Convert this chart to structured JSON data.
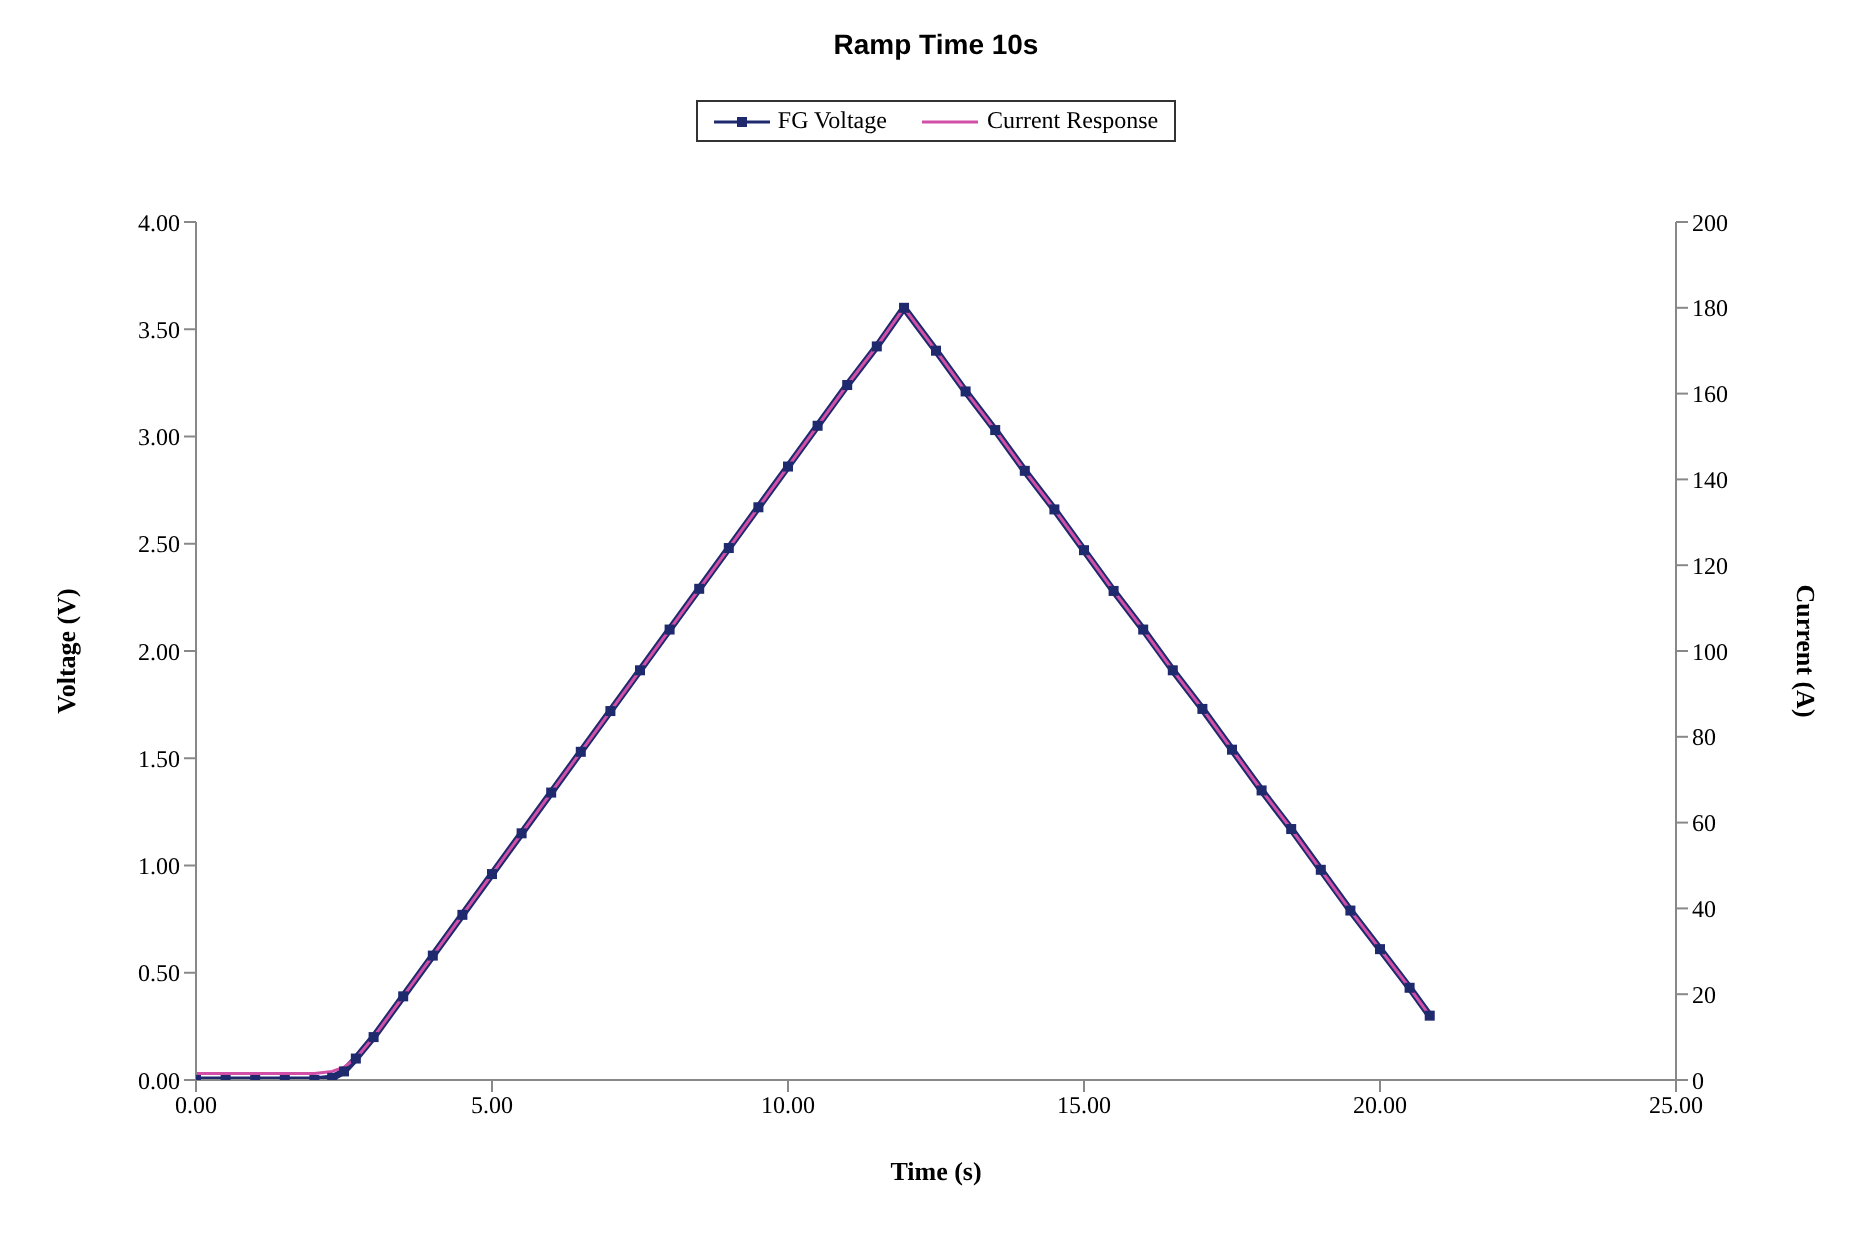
{
  "chart_data": {
    "type": "line",
    "title": "Ramp Time 10s",
    "xlabel": "Time (s)",
    "ylabel": "Voltage (V)",
    "y2label": "Current (A)",
    "x": [
      0,
      0.5,
      1,
      1.5,
      2,
      2.3,
      2.5,
      2.7,
      3,
      3.5,
      4,
      4.5,
      5,
      5.5,
      6,
      6.5,
      7,
      7.5,
      8,
      8.5,
      9,
      9.5,
      10,
      10.5,
      11,
      11.5,
      11.96,
      12.5,
      13,
      13.5,
      14,
      14.5,
      15,
      15.5,
      16,
      16.5,
      17,
      17.5,
      18,
      18.5,
      19,
      19.5,
      20,
      20.5,
      20.84
    ],
    "series": [
      {
        "name": "FG Voltage",
        "color": "#1f2a6e",
        "marker": "square",
        "values": [
          0,
          0,
          0,
          0,
          0,
          0.01,
          0.04,
          0.1,
          0.2,
          0.39,
          0.58,
          0.77,
          0.96,
          1.15,
          1.34,
          1.53,
          1.72,
          1.91,
          2.1,
          2.29,
          2.48,
          2.67,
          2.86,
          3.05,
          3.24,
          3.42,
          3.6,
          3.4,
          3.21,
          3.03,
          2.84,
          2.66,
          2.47,
          2.28,
          2.1,
          1.91,
          1.73,
          1.54,
          1.35,
          1.17,
          0.98,
          0.79,
          0.61,
          0.43,
          0.3
        ]
      },
      {
        "name": "Current Response",
        "color": "#d24fa8",
        "marker": "none",
        "axis": "y2",
        "values": [
          1.5,
          1.5,
          1.5,
          1.5,
          1.5,
          2,
          3,
          5,
          10,
          19.5,
          29,
          38.5,
          48,
          57.5,
          67,
          76.5,
          86,
          95.5,
          105,
          114.5,
          124,
          133.5,
          143,
          152.5,
          162,
          171,
          180,
          170,
          160.5,
          151.5,
          142,
          133,
          123.5,
          114,
          105,
          95.5,
          86.5,
          77,
          67.5,
          58.5,
          49,
          39.5,
          30.5,
          21.5,
          15
        ]
      }
    ],
    "xlim": [
      0,
      25
    ],
    "xticks": [
      {
        "value": 0,
        "label": "0.00"
      },
      {
        "value": 5,
        "label": "5.00"
      },
      {
        "value": 10,
        "label": "10.00"
      },
      {
        "value": 15,
        "label": "15.00"
      },
      {
        "value": 20,
        "label": "20.00"
      },
      {
        "value": 25,
        "label": "25.00"
      }
    ],
    "ylim": [
      0,
      4
    ],
    "yticks": [
      {
        "value": 0,
        "label": "0.00"
      },
      {
        "value": 0.5,
        "label": "0.50"
      },
      {
        "value": 1,
        "label": "1.00"
      },
      {
        "value": 1.5,
        "label": "1.50"
      },
      {
        "value": 2,
        "label": "2.00"
      },
      {
        "value": 2.5,
        "label": "2.50"
      },
      {
        "value": 3,
        "label": "3.00"
      },
      {
        "value": 3.5,
        "label": "3.50"
      },
      {
        "value": 4,
        "label": "4.00"
      }
    ],
    "y2lim": [
      0,
      200
    ],
    "y2ticks": [
      0,
      20,
      40,
      60,
      80,
      100,
      120,
      140,
      160,
      180,
      200
    ],
    "legend": "top",
    "line_style": "solid"
  }
}
